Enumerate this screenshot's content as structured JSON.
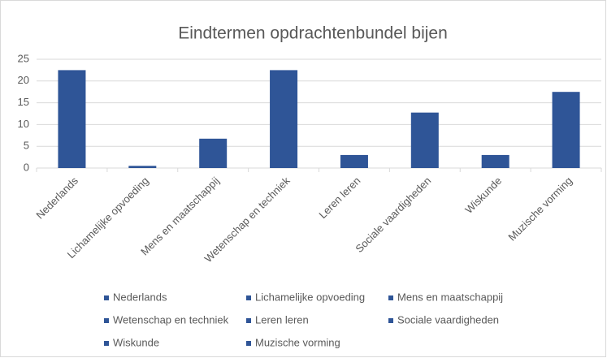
{
  "chart_data": {
    "type": "bar",
    "title": "Eindtermen opdrachtenbundel bijen",
    "categories": [
      "Nederlands",
      "Lichamelijke opvoeding",
      "Mens en maatschappij",
      "Wetenschap en techniek",
      "Leren leren",
      "Sociale vaardigheden",
      "Wiskunde",
      "Muzische vorming"
    ],
    "values": [
      22.5,
      0.5,
      6.75,
      22.5,
      3,
      12.75,
      3,
      17.5
    ],
    "color": "#2f5597",
    "ylim": [
      0,
      25
    ],
    "yticks": [
      0,
      5,
      10,
      15,
      20,
      25
    ],
    "grid": true,
    "legend": "bottom"
  }
}
